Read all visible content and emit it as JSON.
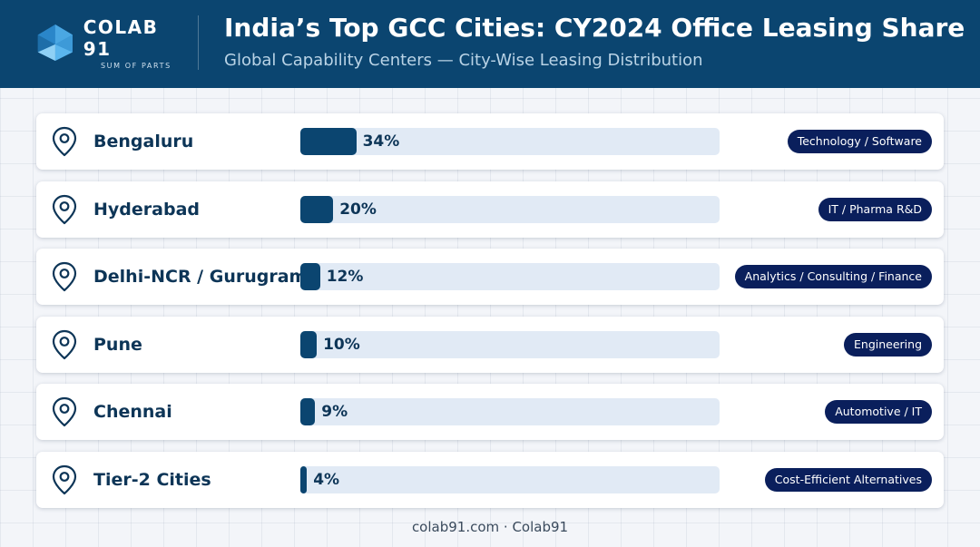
{
  "header": {
    "logo_name": "COLAB 91",
    "logo_tagline": "SUM OF PARTS",
    "title": "India’s Top GCC Cities: CY2024 Office Leasing Share",
    "subtitle": "Global Capability Centers — City-Wise Leasing Distribution"
  },
  "colors": {
    "header_bg": "#0b4570",
    "bar_fill": "#0b4570",
    "bar_track": "#e1eaf5",
    "badge_bg": "#0a1f5c",
    "text_dark": "#0d3557"
  },
  "icons": {
    "row_icon": "map-pin-icon"
  },
  "chart_data": {
    "type": "bar",
    "orientation": "horizontal",
    "title": "India’s Top GCC Cities: CY2024 Office Leasing Share",
    "subtitle": "Global Capability Centers — City-Wise Leasing Distribution",
    "xlim": [
      0,
      100
    ],
    "unit": "%",
    "categories": [
      "Bengaluru",
      "Hyderabad",
      "Delhi-NCR / Gurugram",
      "Pune",
      "Chennai",
      "Tier-2 Cities"
    ],
    "values": [
      34,
      20,
      12,
      10,
      9,
      4
    ],
    "value_labels": [
      "34%",
      "20%",
      "12%",
      "10%",
      "9%",
      "4%"
    ],
    "sectors": [
      "Technology / Software",
      "IT / Pharma R&D",
      "Analytics / Consulting / Finance",
      "Engineering",
      "Automotive / IT",
      "Cost-Efficient Alternatives"
    ],
    "grid": false,
    "legend": "none"
  },
  "footer": {
    "text": "colab91.com · Colab91"
  }
}
